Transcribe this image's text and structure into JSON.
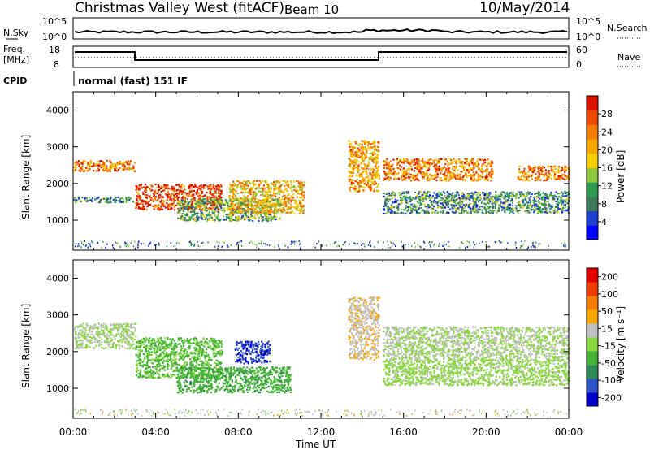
{
  "header": {
    "station": "Christmas Valley West (fitACF)",
    "beam": "Beam 10",
    "date": "10/May/2014"
  },
  "colors": {
    "power_scale": [
      "#0000ff",
      "#1f3fd0",
      "#3d7a5a",
      "#2e9b50",
      "#8dc63f",
      "#f6d000",
      "#f7a800",
      "#f47c00",
      "#f04a00",
      "#e01000"
    ],
    "velocity_scale": [
      "#0000c8",
      "#2f54c8",
      "#2e8b57",
      "#45b335",
      "#8ad640",
      "#c0c0c0",
      "#f7a800",
      "#f47c00",
      "#ef3d00",
      "#e60000"
    ]
  },
  "panels": {
    "nsky": {
      "label": "N.Sky",
      "ticks": [
        "10^5",
        "10^0"
      ],
      "right_label": "N.Search",
      "right_ticks": [
        "10^5",
        "10^0"
      ]
    },
    "freq": {
      "label_line1": "Freq.",
      "label_line2": "[MHz]",
      "ticks": [
        "18",
        "8"
      ],
      "right_label": "Nave",
      "right_ticks": [
        "60",
        "0"
      ]
    },
    "cpid": {
      "label": "CPID",
      "mode": "normal (fast) 151 IF"
    }
  },
  "chart_data": [
    {
      "type": "heatmap",
      "title": "",
      "xlabel": "",
      "ylabel": "Slant Range [km]",
      "ylim": [
        180,
        4500
      ],
      "yticks": [
        "4000",
        "3000",
        "2000",
        "1000"
      ],
      "xlim": [
        0,
        24
      ],
      "colorbar": {
        "label": "Power [dB]",
        "ticks": [
          "28",
          "24",
          "20",
          "16",
          "12",
          "8",
          "4"
        ],
        "range": [
          0,
          32
        ]
      },
      "bands": [
        {
          "x": [
            0,
            3
          ],
          "y": [
            2350,
            2650
          ],
          "value": 24
        },
        {
          "x": [
            0,
            3
          ],
          "y": [
            1500,
            1650
          ],
          "value": 10
        },
        {
          "x": [
            3,
            7.2
          ],
          "y": [
            1300,
            2000
          ],
          "value": 28
        },
        {
          "x": [
            5,
            10
          ],
          "y": [
            1000,
            1600
          ],
          "value": 12
        },
        {
          "x": [
            7.5,
            11.2
          ],
          "y": [
            1200,
            2100
          ],
          "value": 20
        },
        {
          "x": [
            13.3,
            14.8
          ],
          "y": [
            1800,
            3200
          ],
          "value": 22
        },
        {
          "x": [
            15,
            20.3
          ],
          "y": [
            2100,
            2700
          ],
          "value": 24
        },
        {
          "x": [
            15,
            24
          ],
          "y": [
            1200,
            1800
          ],
          "value": 10
        },
        {
          "x": [
            21.5,
            24
          ],
          "y": [
            2100,
            2500
          ],
          "value": 24
        }
      ]
    },
    {
      "type": "heatmap",
      "title": "",
      "xlabel": "Time UT",
      "ylabel": "Slant Range [km]",
      "ylim": [
        180,
        4500
      ],
      "yticks": [
        "4000",
        "3000",
        "2000",
        "1000"
      ],
      "xlim": [
        0,
        24
      ],
      "xticks": [
        "00:00",
        "04:00",
        "08:00",
        "12:00",
        "16:00",
        "20:00",
        "00:00"
      ],
      "colorbar": {
        "label": "Velocity [m s⁻¹]",
        "ticks": [
          "200",
          "100",
          "50",
          "15",
          "-15",
          "-50",
          "-100",
          "-200"
        ],
        "range": [
          -250,
          250
        ]
      },
      "bands": [
        {
          "x": [
            0,
            3
          ],
          "y": [
            2100,
            2800
          ],
          "value": 0
        },
        {
          "x": [
            3,
            7.2
          ],
          "y": [
            1300,
            2400
          ],
          "value": -60
        },
        {
          "x": [
            5,
            10.5
          ],
          "y": [
            900,
            1600
          ],
          "value": -80
        },
        {
          "x": [
            7.8,
            9.5
          ],
          "y": [
            1700,
            2300
          ],
          "value": -200
        },
        {
          "x": [
            13.3,
            14.8
          ],
          "y": [
            1800,
            3500
          ],
          "value": 40
        },
        {
          "x": [
            15,
            24
          ],
          "y": [
            1800,
            2700
          ],
          "value": 0
        },
        {
          "x": [
            15,
            24
          ],
          "y": [
            1100,
            1800
          ],
          "value": -20
        }
      ]
    }
  ]
}
